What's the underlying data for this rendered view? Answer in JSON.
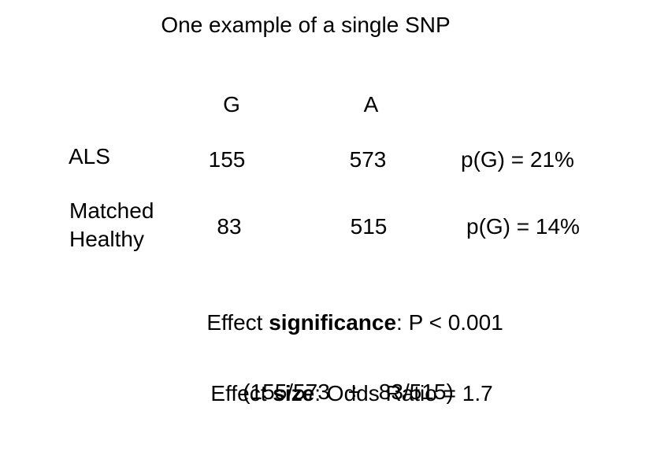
{
  "slide": {
    "title": "One example of a single SNP",
    "table": {
      "col_headers": [
        "G",
        "A"
      ],
      "rows": [
        {
          "label": "ALS",
          "g": "155",
          "a": "573",
          "note": "p(G) = 21%"
        },
        {
          "label": "Matched Healthy",
          "g": "83",
          "a": "515",
          "note": "p(G) = 14%"
        }
      ]
    },
    "significance": {
      "prefix": "Effect ",
      "bold": "significance",
      "suffix": ": P < 0.001"
    },
    "size": {
      "prefix": "Effect ",
      "bold": "size",
      "suffix": ": Odds Ratio = 1.7"
    },
    "formula": "(155/573   ÷   83/515)",
    "colors": {
      "background": "#ffffff",
      "text": "#000000"
    }
  }
}
